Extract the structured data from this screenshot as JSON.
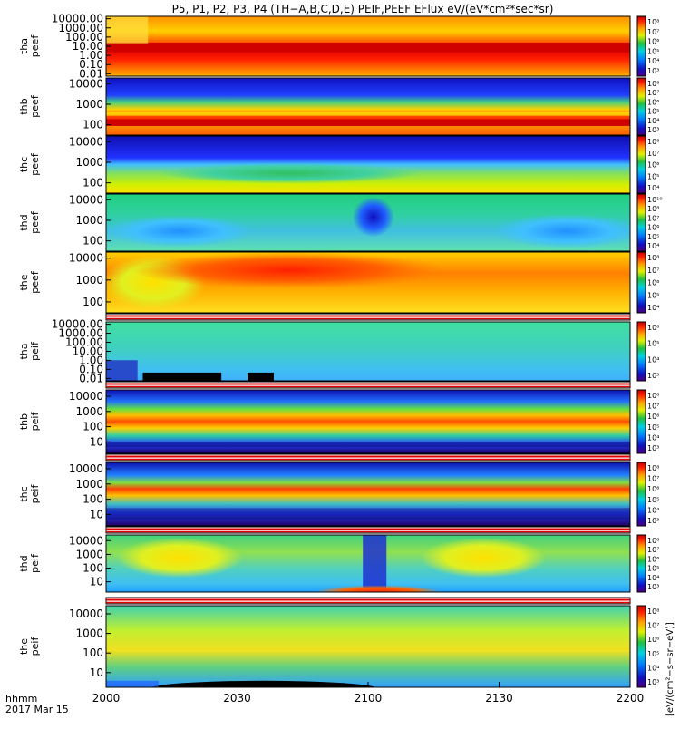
{
  "figure": {
    "title": "P5, P1, P2, P3, P4 (TH−A,B,C,D,E) PEIF,PEEF EFlux eV/(eV*cm²*sec*sr)",
    "time_axis": {
      "label_line1": "hhmm",
      "label_line2": "2017 Mar 15",
      "ticks": [
        "2000",
        "2030",
        "2100",
        "2130",
        "2200"
      ]
    },
    "colorbar_unit": "[eV/(cm²−s−sr−eV)]"
  },
  "chart_data": {
    "type": "heatmap",
    "x_range": [
      "20:00",
      "22:00"
    ],
    "panels": [
      {
        "probe": "tha",
        "product": "peef",
        "y_scale": "log",
        "y_ticks": [
          "10000.00",
          "1000.00",
          "100.00",
          "10.00",
          "1.00",
          "0.10",
          "0.01"
        ],
        "cbar_ticks": [
          "10⁸",
          "10⁷",
          "10⁶",
          "10⁵",
          "10⁴",
          "10³"
        ]
      },
      {
        "probe": "thb",
        "product": "peef",
        "y_scale": "log",
        "y_ticks": [
          "10000",
          "1000",
          "100"
        ],
        "cbar_ticks": [
          "10⁸",
          "10⁷",
          "10⁶",
          "10⁵",
          "10⁴",
          "10³"
        ]
      },
      {
        "probe": "thc",
        "product": "peef",
        "y_scale": "log",
        "y_ticks": [
          "10000",
          "1000",
          "100"
        ],
        "cbar_ticks": [
          "10⁸",
          "10⁷",
          "10⁶",
          "10⁵",
          "10⁴"
        ]
      },
      {
        "probe": "thd",
        "product": "peef",
        "y_scale": "log",
        "y_ticks": [
          "10000",
          "1000",
          "100"
        ],
        "cbar_ticks": [
          "10¹⁰",
          "10⁸",
          "10⁷",
          "10⁶",
          "10⁵",
          "10⁴"
        ]
      },
      {
        "probe": "the",
        "product": "peef",
        "y_scale": "log",
        "y_ticks": [
          "10000",
          "1000",
          "100"
        ],
        "cbar_ticks": [
          "10⁸",
          "10⁷",
          "10⁶",
          "10⁵",
          "10⁴"
        ]
      },
      {
        "probe": "tha",
        "product": "peif",
        "y_scale": "log",
        "y_ticks": [
          "10000.00",
          "1000.00",
          "100.00",
          "10.00",
          "1.00",
          "0.10",
          "0.01"
        ],
        "cbar_ticks": [
          "10⁶",
          "10⁵",
          "10⁴",
          "10³"
        ]
      },
      {
        "probe": "thb",
        "product": "peif",
        "y_scale": "log",
        "y_ticks": [
          "10000",
          "1000",
          "100",
          "10"
        ],
        "cbar_ticks": [
          "10⁸",
          "10⁷",
          "10⁶",
          "10⁵",
          "10⁴",
          "10³"
        ]
      },
      {
        "probe": "thc",
        "product": "peif",
        "y_scale": "log",
        "y_ticks": [
          "10000",
          "1000",
          "100",
          "10"
        ],
        "cbar_ticks": [
          "10⁸",
          "10⁷",
          "10⁶",
          "10⁵",
          "10⁴",
          "10³"
        ]
      },
      {
        "probe": "thd",
        "product": "peif",
        "y_scale": "log",
        "y_ticks": [
          "10000",
          "1000",
          "100",
          "10"
        ],
        "cbar_ticks": [
          "10⁸",
          "10⁷",
          "10⁶",
          "10⁵",
          "10⁴",
          "10³"
        ]
      },
      {
        "probe": "the",
        "product": "peif",
        "y_scale": "log",
        "y_ticks": [
          "10000",
          "1000",
          "100",
          "10"
        ],
        "cbar_ticks": [
          "10⁸",
          "10⁷",
          "10⁶",
          "10⁵",
          "10⁴",
          "10³"
        ]
      }
    ]
  }
}
